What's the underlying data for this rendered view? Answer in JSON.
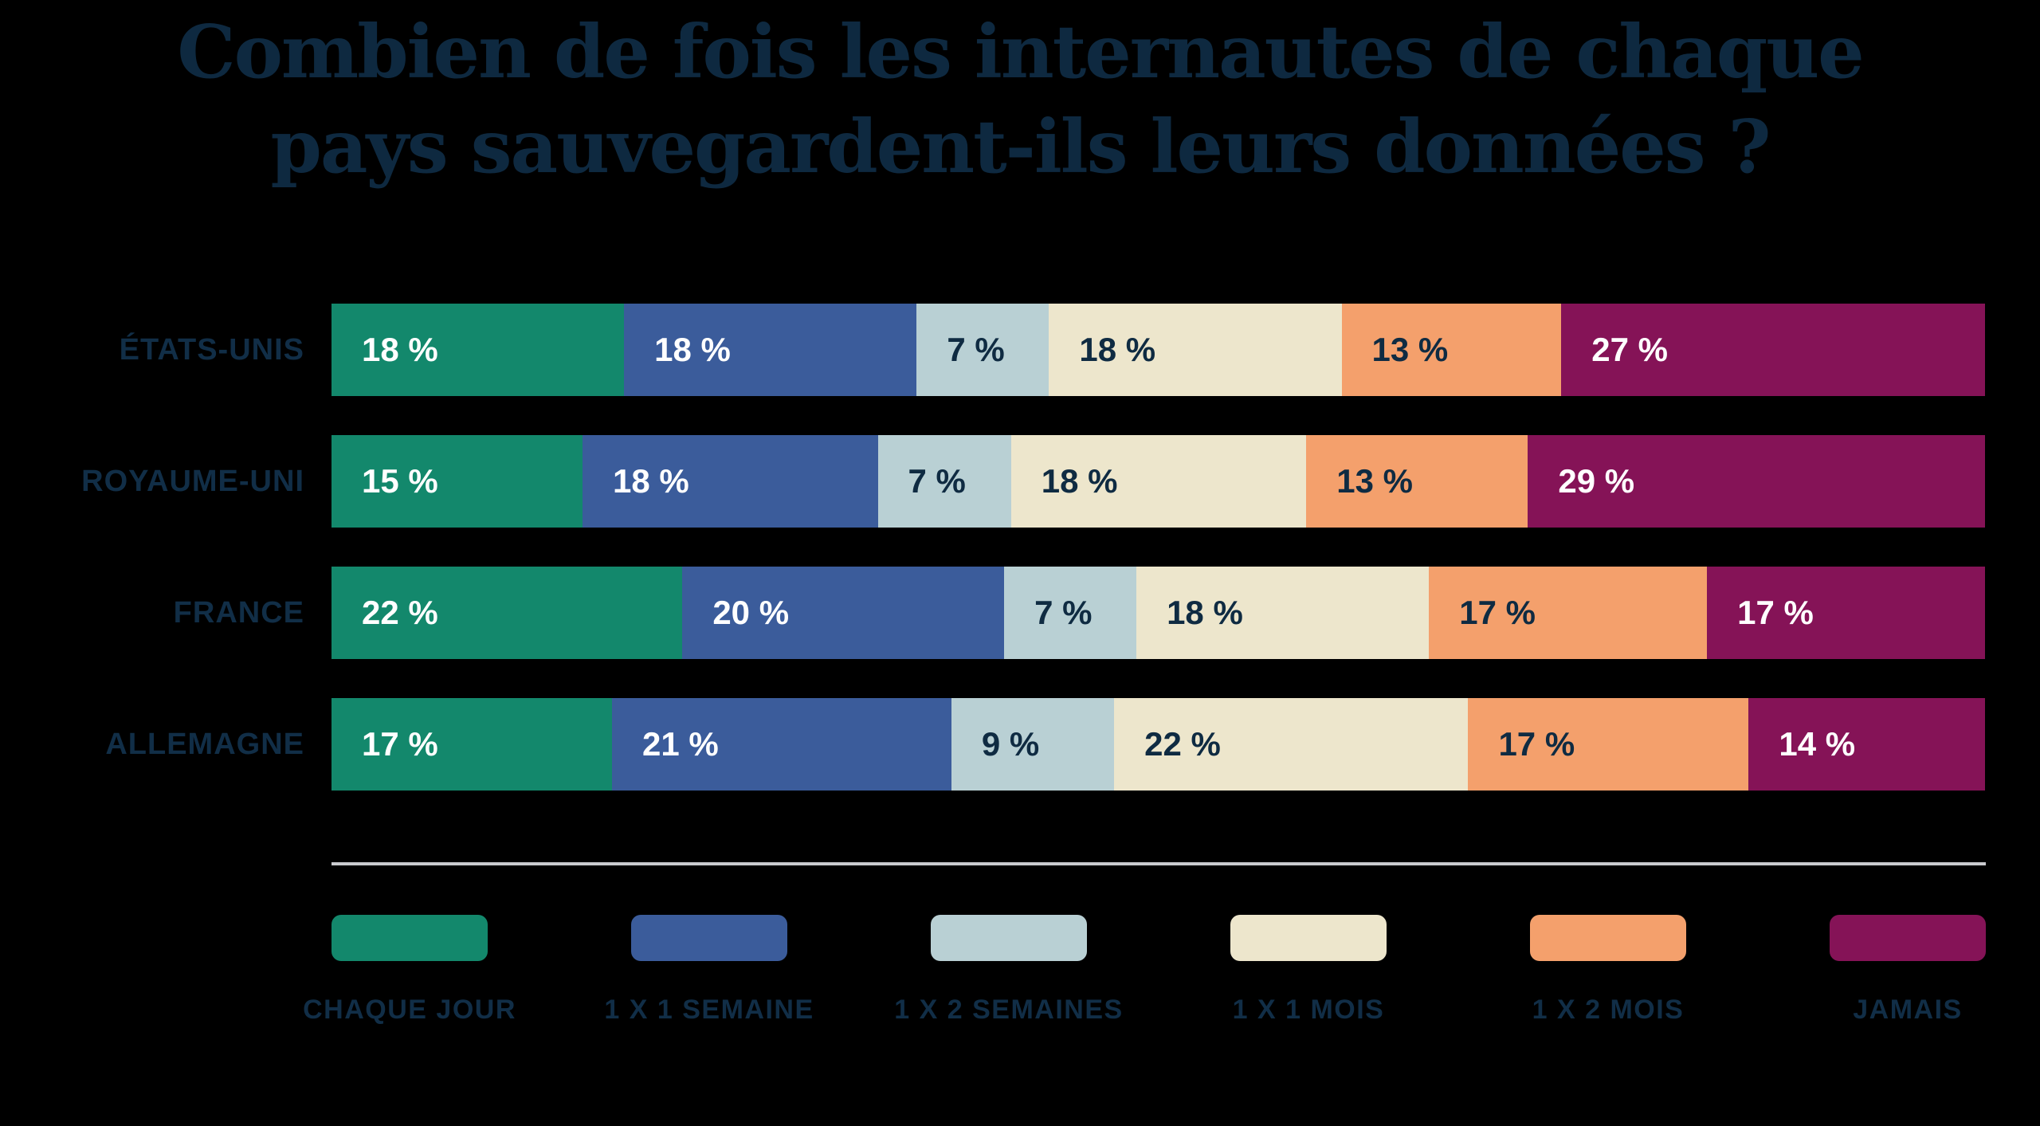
{
  "title": {
    "line1": "Combien de fois les internautes de chaque",
    "line2": "pays sauvegardent-ils leurs données ?"
  },
  "colors": {
    "background": "#000000",
    "title_text": "#0E2940",
    "label_text": "#112E47",
    "divider": "#C9CACE",
    "value_text_light": "#FFFFFF",
    "value_text_dark": "#0F2B42"
  },
  "chart_data": {
    "type": "bar",
    "variant": "horizontal-stacked",
    "title": "Combien de fois les internautes de chaque pays sauvegardent-ils leurs données ?",
    "unit": "%",
    "value_suffix": " %",
    "legend_position": "bottom",
    "categories": [
      "CHAQUE JOUR",
      "1 X 1 SEMAINE",
      "1 X 2 SEMAINES",
      "1 X 1 MOIS",
      "1 X 2 MOIS",
      "JAMAIS"
    ],
    "series_colors": [
      "#13886C",
      "#3B5C9B",
      "#B9D0D4",
      "#EDE6CC",
      "#F4A06C",
      "#851357"
    ],
    "value_label_colors": [
      "#FFFFFF",
      "#FFFFFF",
      "#0F2B42",
      "#0F2B42",
      "#0F2B42",
      "#FFFFFF"
    ],
    "rows": [
      {
        "country": "ÉTATS-UNIS",
        "values": [
          18,
          18,
          7,
          18,
          13,
          27
        ]
      },
      {
        "country": "ROYAUME-UNI",
        "values": [
          15,
          18,
          7,
          18,
          13,
          29
        ]
      },
      {
        "country": "FRANCE",
        "values": [
          22,
          20,
          7,
          18,
          17,
          17
        ]
      },
      {
        "country": "ALLEMAGNE",
        "values": [
          17,
          21,
          9,
          22,
          17,
          14
        ]
      }
    ]
  }
}
